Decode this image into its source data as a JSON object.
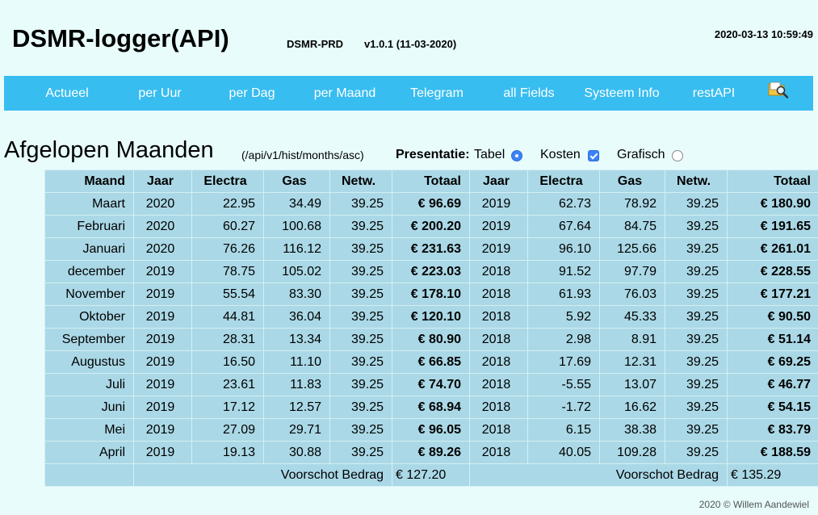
{
  "header": {
    "title": "DSMR-logger(API)",
    "environment": "DSMR-PRD",
    "version": "v1.0.1 (11-03-2020)",
    "datetime": "2020-03-13 10:59:49"
  },
  "nav": {
    "items": [
      "Actueel",
      "per Uur",
      "per Dag",
      "per Maand",
      "Telegram",
      "all Fields",
      "Systeem Info",
      "restAPI"
    ],
    "icon": "filesystem-magnifier-icon"
  },
  "page": {
    "title": "Afgelopen Maanden",
    "api_path": "(/api/v1/hist/months/asc)",
    "presentation_label": "Presentatie:",
    "options": [
      {
        "label": "Tabel",
        "control": "radio",
        "checked": true
      },
      {
        "label": "Kosten",
        "control": "checkbox",
        "checked": true
      },
      {
        "label": "Grafisch",
        "control": "radio",
        "checked": false
      }
    ]
  },
  "table": {
    "headers": [
      "Maand",
      "Jaar",
      "Electra",
      "Gas",
      "Netw.",
      "Totaal",
      "Jaar",
      "Electra",
      "Gas",
      "Netw.",
      "Totaal"
    ],
    "rows": [
      [
        "Maart",
        "2020",
        "22.95",
        "34.49",
        "39.25",
        "€ 96.69",
        "2019",
        "62.73",
        "78.92",
        "39.25",
        "€ 180.90"
      ],
      [
        "Februari",
        "2020",
        "60.27",
        "100.68",
        "39.25",
        "€ 200.20",
        "2019",
        "67.64",
        "84.75",
        "39.25",
        "€ 191.65"
      ],
      [
        "Januari",
        "2020",
        "76.26",
        "116.12",
        "39.25",
        "€ 231.63",
        "2019",
        "96.10",
        "125.66",
        "39.25",
        "€ 261.01"
      ],
      [
        "december",
        "2019",
        "78.75",
        "105.02",
        "39.25",
        "€ 223.03",
        "2018",
        "91.52",
        "97.79",
        "39.25",
        "€ 228.55"
      ],
      [
        "November",
        "2019",
        "55.54",
        "83.30",
        "39.25",
        "€ 178.10",
        "2018",
        "61.93",
        "76.03",
        "39.25",
        "€ 177.21"
      ],
      [
        "Oktober",
        "2019",
        "44.81",
        "36.04",
        "39.25",
        "€ 120.10",
        "2018",
        "5.92",
        "45.33",
        "39.25",
        "€ 90.50"
      ],
      [
        "September",
        "2019",
        "28.31",
        "13.34",
        "39.25",
        "€ 80.90",
        "2018",
        "2.98",
        "8.91",
        "39.25",
        "€ 51.14"
      ],
      [
        "Augustus",
        "2019",
        "16.50",
        "11.10",
        "39.25",
        "€ 66.85",
        "2018",
        "17.69",
        "12.31",
        "39.25",
        "€ 69.25"
      ],
      [
        "Juli",
        "2019",
        "23.61",
        "11.83",
        "39.25",
        "€ 74.70",
        "2018",
        "-5.55",
        "13.07",
        "39.25",
        "€ 46.77"
      ],
      [
        "Juni",
        "2019",
        "17.12",
        "12.57",
        "39.25",
        "€ 68.94",
        "2018",
        "-1.72",
        "16.62",
        "39.25",
        "€ 54.15"
      ],
      [
        "Mei",
        "2019",
        "27.09",
        "29.71",
        "39.25",
        "€ 96.05",
        "2018",
        "6.15",
        "38.38",
        "39.25",
        "€ 83.79"
      ],
      [
        "April",
        "2019",
        "19.13",
        "30.88",
        "39.25",
        "€ 89.26",
        "2018",
        "40.05",
        "109.28",
        "39.25",
        "€ 188.59"
      ]
    ],
    "footer_row": {
      "label_left": "Voorschot Bedrag",
      "value_left": "€ 127.20",
      "label_right": "Voorschot Bedrag",
      "value_right": "€ 135.29"
    }
  },
  "footer": "2020 © Willem Aandewiel",
  "colors": {
    "background": "#e8fcfc",
    "nav": "#38bdf0",
    "table_cell": "#aad8e6",
    "table_border": "#d4f0f4"
  }
}
